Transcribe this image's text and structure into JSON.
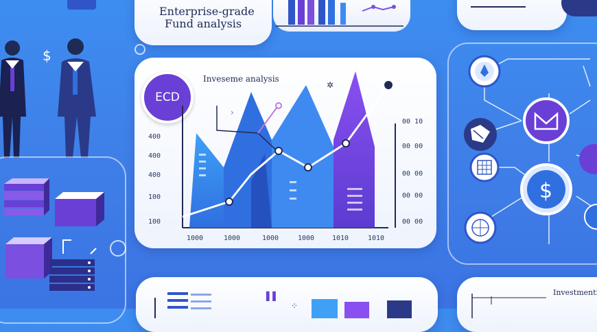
{
  "top_card": {
    "line1": "Enterprise-grade",
    "line2": "Fund analysis"
  },
  "main_card": {
    "badge": "ECD",
    "title": "Inveseme analysis",
    "left_ticks": [
      "400",
      "400",
      "400",
      "100",
      "100"
    ],
    "right_ticks": [
      "00 10",
      "00 00",
      "00 00",
      "00 00",
      "00 00"
    ],
    "x_ticks": [
      "1000",
      "1000",
      "1000",
      "1000",
      "1010",
      "1010"
    ]
  },
  "bottom_right": {
    "label": "Investmenti"
  },
  "icons": {
    "dollar_people": "$",
    "dollar_network": "$"
  },
  "colors": {
    "background": "#3d8df0",
    "accent_purple": "#6a3fd6",
    "accent_blue": "#2f6fe0",
    "dark_navy": "#1f2a55"
  }
}
